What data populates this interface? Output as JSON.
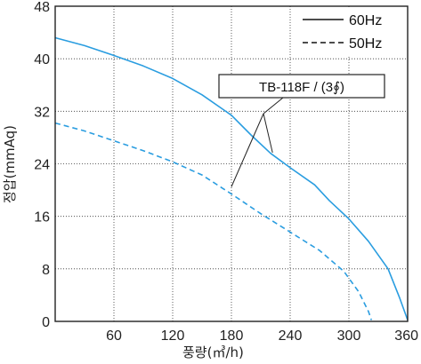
{
  "chart_data": {
    "type": "line",
    "xlabel": "풍량(㎥/h)",
    "ylabel": "정압(mmAq)",
    "xlim": [
      0,
      360
    ],
    "ylim": [
      0,
      48
    ],
    "xticks": [
      60,
      120,
      180,
      240,
      300,
      360
    ],
    "yticks": [
      0,
      8,
      16,
      24,
      32,
      40,
      48
    ],
    "grid": true,
    "legend_position": "top-right",
    "series": [
      {
        "name": "60Hz",
        "style": "solid",
        "color": "#2a9de0",
        "points": [
          [
            0,
            43.2
          ],
          [
            30,
            42.0
          ],
          [
            60,
            40.5
          ],
          [
            90,
            38.9
          ],
          [
            120,
            37.0
          ],
          [
            150,
            34.5
          ],
          [
            180,
            31.4
          ],
          [
            200,
            28.4
          ],
          [
            220,
            25.6
          ],
          [
            240,
            23.4
          ],
          [
            265,
            20.8
          ],
          [
            280,
            18.4
          ],
          [
            300,
            15.6
          ],
          [
            320,
            12.2
          ],
          [
            340,
            8.0
          ],
          [
            352,
            3.5
          ],
          [
            360,
            0.2
          ]
        ]
      },
      {
        "name": "50Hz",
        "style": "dashed",
        "color": "#2a9de0",
        "points": [
          [
            0,
            30.2
          ],
          [
            30,
            29.0
          ],
          [
            60,
            27.5
          ],
          [
            90,
            26.0
          ],
          [
            120,
            24.3
          ],
          [
            150,
            22.3
          ],
          [
            180,
            19.4
          ],
          [
            210,
            16.4
          ],
          [
            240,
            13.6
          ],
          [
            270,
            10.8
          ],
          [
            295,
            7.6
          ],
          [
            310,
            4.5
          ],
          [
            320,
            1.5
          ],
          [
            323,
            0.2
          ]
        ]
      }
    ],
    "annotation": {
      "text": "TB-118F / (3∮)",
      "targets": [
        [
          180,
          20.5
        ],
        [
          222,
          25.7
        ]
      ]
    }
  }
}
